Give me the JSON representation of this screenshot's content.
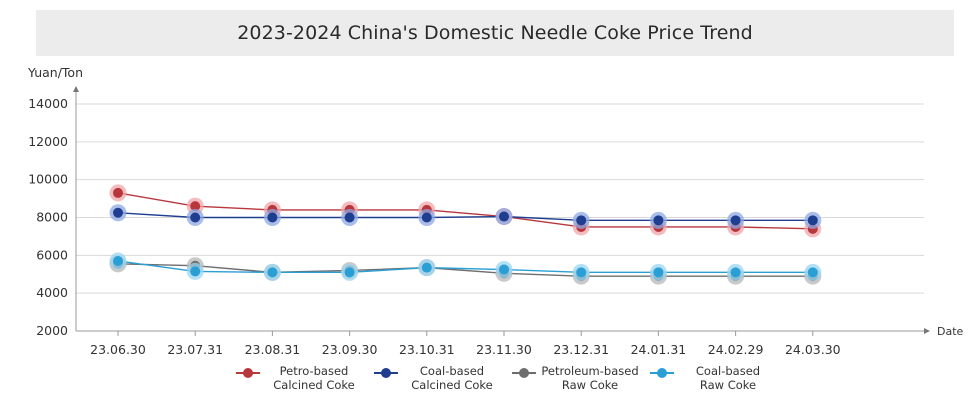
{
  "chart_data": {
    "type": "line",
    "title": "2023-2024 China's Domestic Needle Coke Price Trend",
    "ylabel": "Yuan/Ton",
    "xlabel": "Date",
    "ylim": [
      2000,
      14000
    ],
    "yticks": [
      2000,
      4000,
      6000,
      8000,
      10000,
      12000,
      14000
    ],
    "grid": true,
    "legend_position": "bottom",
    "categories": [
      "23.06.30",
      "23.07.31",
      "23.08.31",
      "23.09.30",
      "23.10.31",
      "23.11.30",
      "23.12.31",
      "24.01.31",
      "24.02.29",
      "24.03.30"
    ],
    "series": [
      {
        "name_line1": "Petro-based",
        "name_line2": "Calcined Coke",
        "color": "#b8373d",
        "halo": "#f0a5aa",
        "values": [
          9300,
          8600,
          8400,
          8400,
          8400,
          8050,
          7500,
          7500,
          7500,
          7400
        ]
      },
      {
        "name_line1": "Coal-based",
        "name_line2": "Calcined Coke",
        "color": "#1f3e8f",
        "halo": "#8ea8e4",
        "values": [
          8250,
          8000,
          8000,
          8000,
          8000,
          8050,
          7850,
          7850,
          7850,
          7850
        ]
      },
      {
        "name_line1": "Petroleum-based",
        "name_line2": "Raw Coke",
        "color": "#6e6e6e",
        "halo": "#b7b7b7",
        "values": [
          5550,
          5450,
          5100,
          5200,
          5350,
          5050,
          4900,
          4900,
          4900,
          4900
        ]
      },
      {
        "name_line1": "Coal-based",
        "name_line2": "Raw Coke",
        "color": "#2a9fd6",
        "halo": "#9ad6f2",
        "values": [
          5700,
          5150,
          5100,
          5100,
          5350,
          5250,
          5100,
          5100,
          5100,
          5100
        ]
      }
    ]
  }
}
